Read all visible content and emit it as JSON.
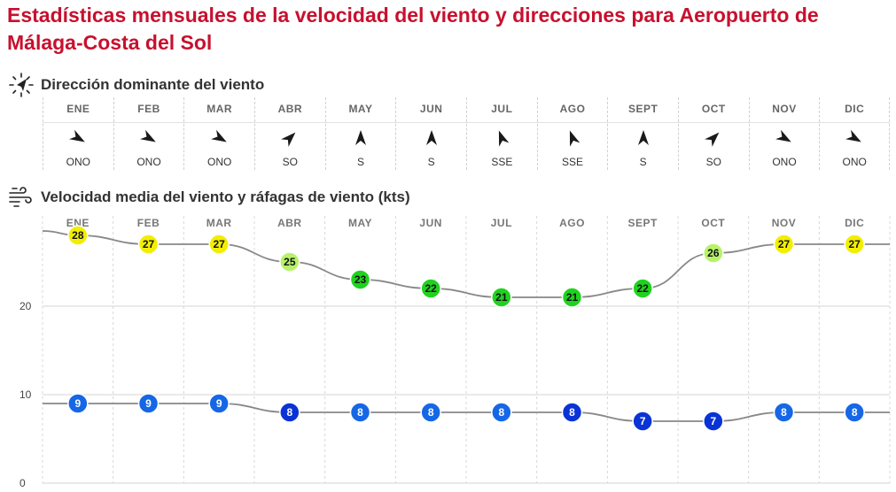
{
  "page": {
    "title": "Estadísticas mensuales de la velocidad del viento y direcciones para Aeropuerto de Málaga-Costa del Sol"
  },
  "direction_section": {
    "title": "Dirección dominante del viento",
    "icon": "compass-arrow-icon",
    "months": [
      {
        "month": "ENE",
        "dir": "ONO",
        "bearing": 120
      },
      {
        "month": "FEB",
        "dir": "ONO",
        "bearing": 120
      },
      {
        "month": "MAR",
        "dir": "ONO",
        "bearing": 120
      },
      {
        "month": "ABR",
        "dir": "SO",
        "bearing": 45
      },
      {
        "month": "MAY",
        "dir": "S",
        "bearing": 0
      },
      {
        "month": "JUN",
        "dir": "S",
        "bearing": 0
      },
      {
        "month": "JUL",
        "dir": "SSE",
        "bearing": 340
      },
      {
        "month": "AGO",
        "dir": "SSE",
        "bearing": 340
      },
      {
        "month": "SEPT",
        "dir": "S",
        "bearing": 0
      },
      {
        "month": "OCT",
        "dir": "SO",
        "bearing": 45
      },
      {
        "month": "NOV",
        "dir": "ONO",
        "bearing": 120
      },
      {
        "month": "DIC",
        "dir": "ONO",
        "bearing": 120
      }
    ],
    "arrow_color": "#1a1a1a"
  },
  "speed_section": {
    "title": "Velocidad media del viento y ráfagas de viento (kts)",
    "icon": "wind-icon"
  },
  "chart_data": {
    "type": "line",
    "categories": [
      "ENE",
      "FEB",
      "MAR",
      "ABR",
      "MAY",
      "JUN",
      "JUL",
      "AGO",
      "SEPT",
      "OCT",
      "NOV",
      "DIC"
    ],
    "series": [
      {
        "values": [
          28,
          27,
          27,
          25,
          23,
          22,
          21,
          21,
          22,
          26,
          27,
          27
        ],
        "line_color": "#888888",
        "dot_colors": [
          "#f2ee00",
          "#f2ee00",
          "#f2ee00",
          "#b6f26a",
          "#1fd21f",
          "#1fd21f",
          "#1fd21f",
          "#1fd21f",
          "#1fd21f",
          "#b6f26a",
          "#f2ee00",
          "#f2ee00"
        ]
      },
      {
        "values": [
          9,
          9,
          9,
          8,
          8,
          8,
          8,
          8,
          7,
          7,
          8,
          8
        ],
        "line_color": "#888888",
        "dot_colors": [
          "#1667e6",
          "#1667e6",
          "#1667e6",
          "#0a33d6",
          "#1667e6",
          "#1667e6",
          "#1667e6",
          "#0a33d6",
          "#0a33d6",
          "#0a33d6",
          "#1667e6",
          "#1667e6"
        ]
      }
    ],
    "ylim": [
      0,
      30
    ],
    "yticks": [
      0,
      10,
      20
    ],
    "grid": true,
    "dot_label_colors": {
      "dark": "#111111",
      "light": "#ffffff"
    }
  }
}
